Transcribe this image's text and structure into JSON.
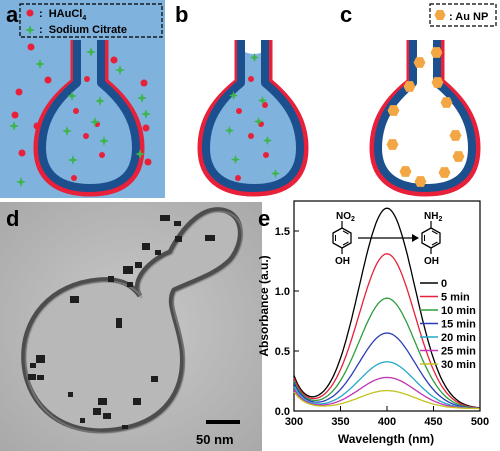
{
  "panels": {
    "a": "a",
    "b": "b",
    "c": "c",
    "d": "d",
    "e": "e"
  },
  "legend_a": {
    "haucl4": "HAuCl",
    "haucl4_sub": "4",
    "citrate": "Sodium Citrate",
    "colon": ":"
  },
  "legend_c": {
    "au_np": ": Au NP"
  },
  "tem": {
    "scale_bar": "50 nm"
  },
  "colors": {
    "background_blue": "#7fb2dc",
    "vessel_red": "#e8203a",
    "vessel_navy": "#1b4f8e",
    "red_dot": "#e8203a",
    "green_star": "#3cb54a",
    "au_np": "#f2a744"
  },
  "chemistry": {
    "reactant_group": "NO",
    "reactant_sub": "2",
    "product_group": "NH",
    "product_sub": "2",
    "hydroxyl": "OH"
  },
  "chart_data": {
    "type": "line",
    "xlabel": "Wavelength (nm)",
    "ylabel": "Absorbance (a.u.)",
    "xlim": [
      300,
      500
    ],
    "ylim": [
      0,
      1.75
    ],
    "xticks": [
      300,
      350,
      400,
      450,
      500
    ],
    "yticks": [
      0.0,
      0.5,
      1.0,
      1.5
    ],
    "ytick_labels": [
      "0.0",
      "0.5",
      "1.0",
      "1.5"
    ],
    "grid": false,
    "legend_position": "top-right",
    "series": [
      {
        "name": "0",
        "color": "#000000",
        "peak": 1.67,
        "at300": 0.27
      },
      {
        "name": "5 min",
        "color": "#e8203a",
        "peak": 1.29,
        "at300": 0.25
      },
      {
        "name": "10 min",
        "color": "#2e9e3f",
        "peak": 0.92,
        "at300": 0.23
      },
      {
        "name": "15 min",
        "color": "#2a3cb5",
        "peak": 0.63,
        "at300": 0.21
      },
      {
        "name": "20 min",
        "color": "#22a9c9",
        "peak": 0.39,
        "at300": 0.18
      },
      {
        "name": "25 min",
        "color": "#c235b7",
        "peak": 0.26,
        "at300": 0.16
      },
      {
        "name": "30 min",
        "color": "#c4c21f",
        "peak": 0.15,
        "at300": 0.14
      }
    ]
  }
}
